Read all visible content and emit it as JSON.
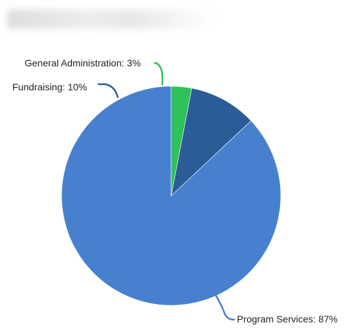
{
  "chart_data": {
    "type": "pie",
    "start_angle_deg": 0,
    "direction": "counterclockwise",
    "slices": [
      {
        "label": "Program Services",
        "value": 87,
        "display": "Program Services: 87%",
        "color": "#4780CE"
      },
      {
        "label": "Fundraising",
        "value": 10,
        "display": "Fundraising: 10%",
        "color": "#2B5C97"
      },
      {
        "label": "General Administration",
        "value": 3,
        "display": "General Administration: 3%",
        "color": "#2FC15A"
      }
    ]
  }
}
